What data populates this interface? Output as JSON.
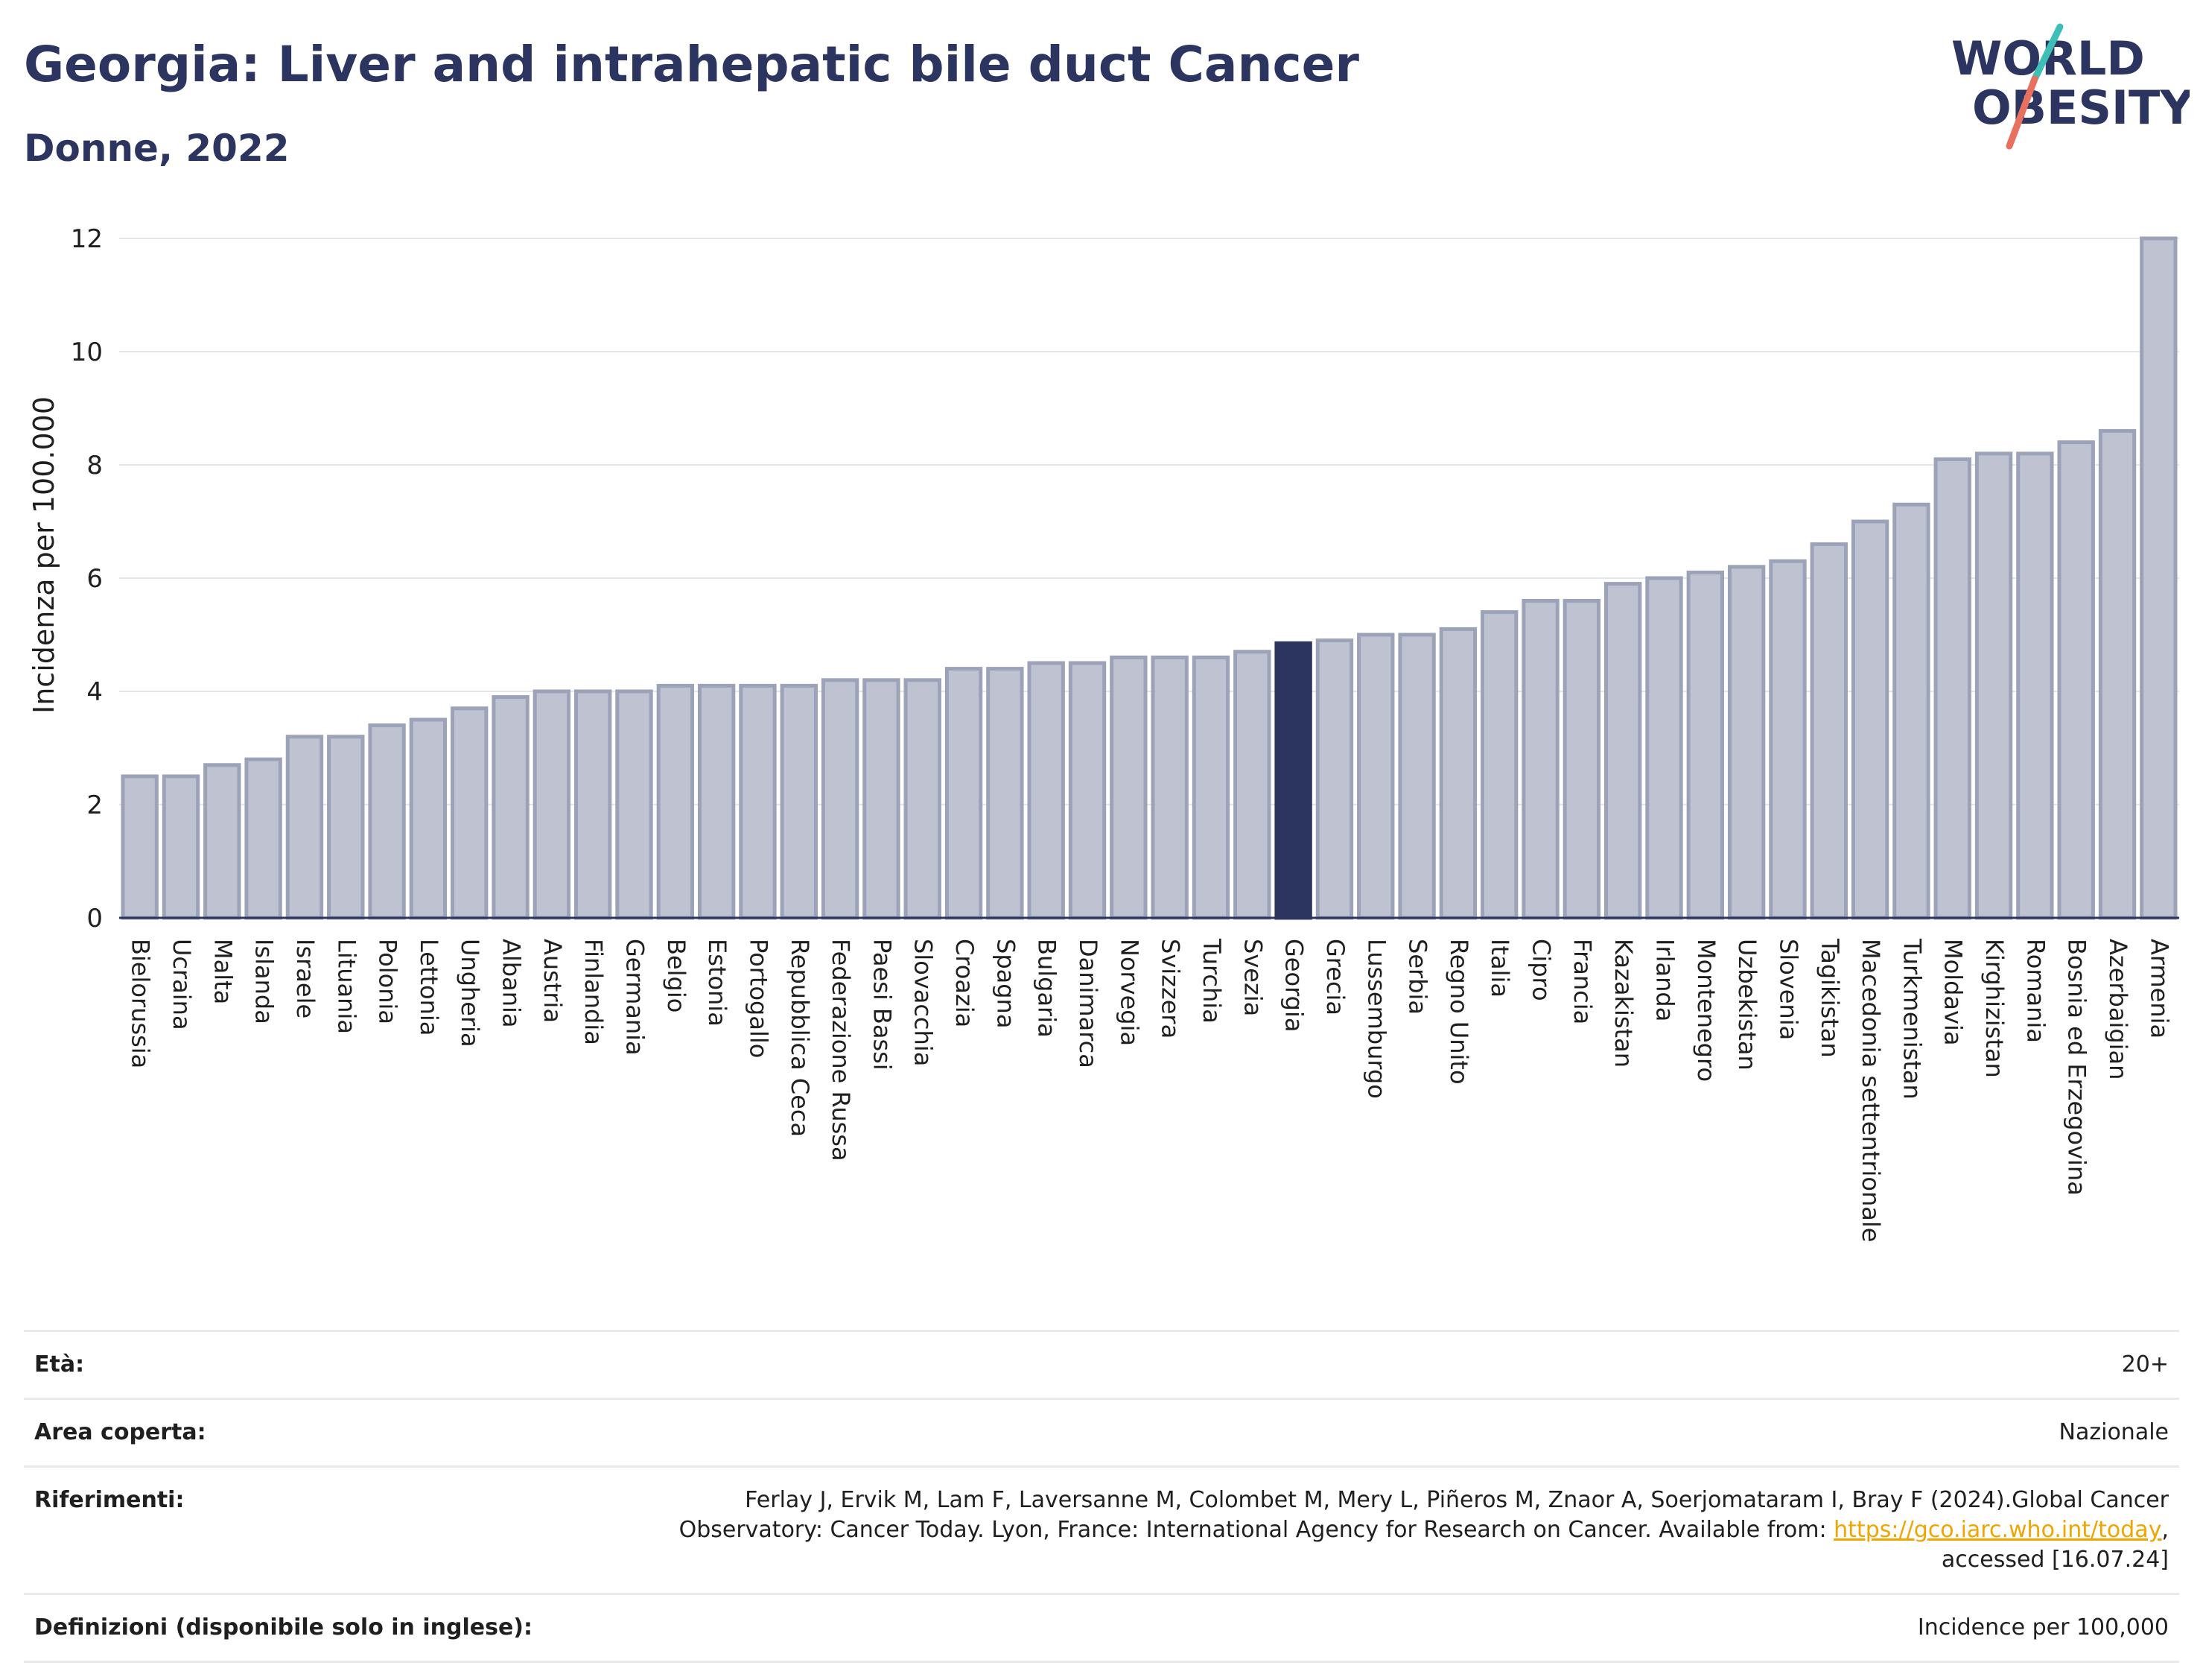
{
  "header": {
    "title": "Georgia: Liver and intrahepatic bile duct Cancer",
    "subtitle": "Donne, 2022"
  },
  "logo": {
    "line1": "WORLD",
    "line2": "OBESITY",
    "text_color": "#2b3560",
    "slash_colors": [
      "#3dbfb8",
      "#e8705f"
    ]
  },
  "chart_data": {
    "type": "bar",
    "ylabel": "Incidenza per 100.000",
    "xlabel": "",
    "ylim": [
      0,
      12
    ],
    "yticks": [
      0,
      2,
      4,
      6,
      8,
      10,
      12
    ],
    "grid": true,
    "highlight": "Georgia",
    "bar_color": "#bfc3d1",
    "bar_edge_color": "#9ca2b8",
    "highlight_color": "#2b3560",
    "categories": [
      "Bielorussia",
      "Ucraina",
      "Malta",
      "Islanda",
      "Israele",
      "Lituania",
      "Polonia",
      "Lettonia",
      "Ungheria",
      "Albania",
      "Austria",
      "Finlandia",
      "Germania",
      "Belgio",
      "Estonia",
      "Portogallo",
      "Repubblica Ceca",
      "Federazione Russa",
      "Paesi Bassi",
      "Slovacchia",
      "Croazia",
      "Spagna",
      "Bulgaria",
      "Danimarca",
      "Norvegia",
      "Svizzera",
      "Turchia",
      "Svezia",
      "Georgia",
      "Grecia",
      "Lussemburgo",
      "Serbia",
      "Regno Unito",
      "Italia",
      "Cipro",
      "Francia",
      "Kazakistan",
      "Irlanda",
      "Montenegro",
      "Uzbekistan",
      "Slovenia",
      "Tagikistan",
      "Macedonia settentrionale",
      "Turkmenistan",
      "Moldavia",
      "Kirghizistan",
      "Romania",
      "Bosnia ed Erzegovina",
      "Azerbaigian",
      "Armenia"
    ],
    "values": [
      2.5,
      2.5,
      2.7,
      2.8,
      3.2,
      3.2,
      3.4,
      3.5,
      3.7,
      3.9,
      4.0,
      4.0,
      4.0,
      4.1,
      4.1,
      4.1,
      4.1,
      4.2,
      4.2,
      4.2,
      4.4,
      4.4,
      4.5,
      4.5,
      4.6,
      4.6,
      4.6,
      4.7,
      4.85,
      4.9,
      5.0,
      5.0,
      5.1,
      5.4,
      5.6,
      5.6,
      5.9,
      6.0,
      6.1,
      6.2,
      6.3,
      6.6,
      7.0,
      7.3,
      8.1,
      8.2,
      8.2,
      8.4,
      8.6,
      12.0
    ]
  },
  "meta": {
    "age_label": "Età:",
    "age_value": "20+",
    "area_label": "Area coperta:",
    "area_value": "Nazionale",
    "refs_label": "Riferimenti:",
    "refs_text_before": "Ferlay J, Ervik M, Lam F, Laversanne M, Colombet M, Mery L, Piñeros M, Znaor A, Soerjomataram I, Bray F (2024).Global Cancer Observatory: Cancer Today. Lyon, France: International Agency for Research on Cancer. Available from: ",
    "refs_link": "https://gco.iarc.who.int/today",
    "refs_text_after": ", accessed [16.07.24]",
    "defs_label": "Definizioni (disponibile solo in inglese):",
    "defs_value": "Incidence per 100,000"
  }
}
